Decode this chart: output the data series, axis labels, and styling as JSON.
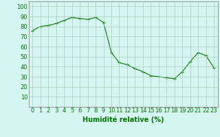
{
  "x": [
    0,
    1,
    2,
    3,
    4,
    5,
    6,
    7,
    8,
    9,
    10,
    11,
    12,
    13,
    14,
    15,
    16,
    17,
    18,
    19,
    20,
    21,
    22,
    23
  ],
  "y": [
    76,
    80,
    81,
    83,
    86,
    89,
    88,
    87,
    89,
    84,
    54,
    44,
    42,
    38,
    35,
    31,
    30,
    29,
    28,
    35,
    45,
    54,
    51,
    39
  ],
  "line_color": "#007700",
  "marker": "+",
  "marker_color": "#007700",
  "bg_color": "#d5f5f0",
  "grid_color": "#aaccbb",
  "spine_color": "#888888",
  "xlabel": "Humidité relative (%)",
  "xlabel_color": "#007700",
  "tick_color": "#007700",
  "xlim": [
    -0.5,
    23.5
  ],
  "ylim": [
    0,
    105
  ],
  "yticks": [
    10,
    20,
    30,
    40,
    50,
    60,
    70,
    80,
    90,
    100
  ],
  "xtick_labels": [
    "0",
    "1",
    "2",
    "3",
    "4",
    "5",
    "6",
    "7",
    "8",
    "9",
    "10",
    "11",
    "12",
    "13",
    "14",
    "15",
    "16",
    "17",
    "18",
    "19",
    "20",
    "21",
    "22",
    "23"
  ],
  "xlabel_fontsize": 7,
  "tick_fontsize": 6
}
